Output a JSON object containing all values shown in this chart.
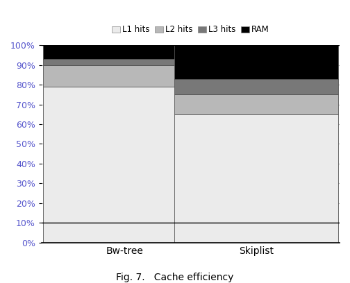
{
  "categories": [
    "Bw-tree",
    "Skiplist"
  ],
  "series": {
    "L1 hits": [
      79,
      65
    ],
    "L2 hits": [
      11,
      10
    ],
    "L3 hits": [
      3,
      8
    ],
    "RAM": [
      7,
      17
    ]
  },
  "colors": {
    "L1 hits": "#ebebeb",
    "L2 hits": "#b8b8b8",
    "L3 hits": "#787878",
    "RAM": "#000000"
  },
  "legend_labels": [
    "L1 hits",
    "L2 hits",
    "L3 hits",
    "RAM"
  ],
  "ylim": [
    0,
    100
  ],
  "yticks": [
    0,
    10,
    20,
    30,
    40,
    50,
    60,
    70,
    80,
    90,
    100
  ],
  "ytick_labels": [
    "0%",
    "10%",
    "20%",
    "30%",
    "40%",
    "50%",
    "60%",
    "70%",
    "80%",
    "90%",
    "100%"
  ],
  "caption": "Fig. 7.   Cache efficiency",
  "bar_width": 0.55,
  "edge_color": "#555555",
  "grid_color": "#aaaaaa",
  "tick_color": "#5555cc",
  "background_color": "#ffffff",
  "bar_positions": [
    0.28,
    0.72
  ]
}
